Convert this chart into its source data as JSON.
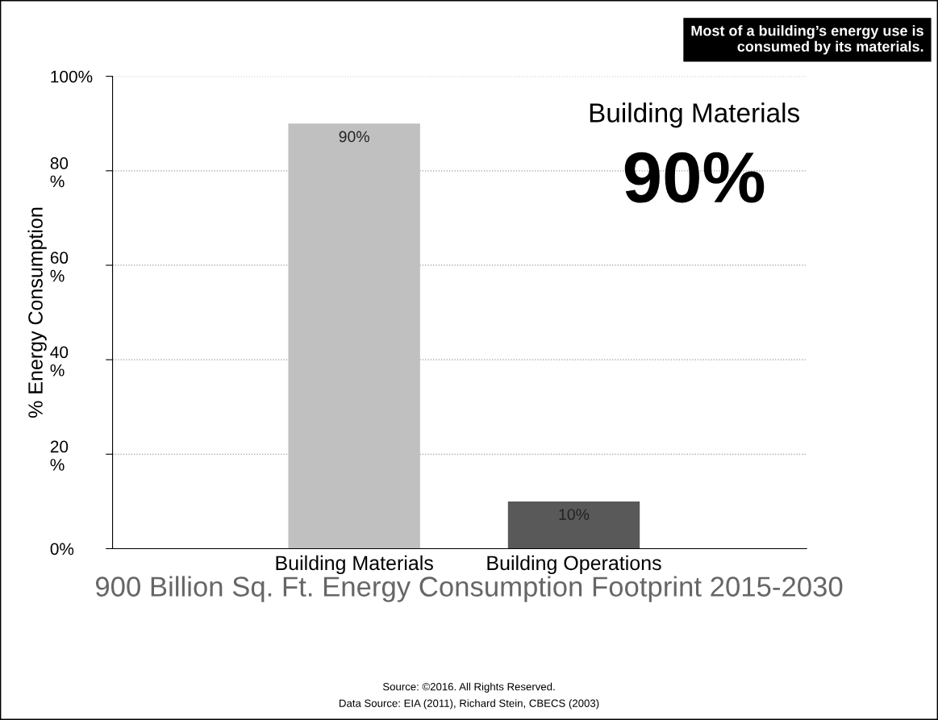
{
  "chart_data": {
    "type": "bar",
    "title": "900 Billion Sq. Ft. Energy Consumption Footprint 2015-2030",
    "ylabel": "% Energy Consumption",
    "categories": [
      "Building Materials",
      "Building Operations"
    ],
    "values": [
      90,
      10
    ],
    "colors": [
      "#c0c0c0",
      "#595959"
    ],
    "value_labels": [
      "90%",
      "10%"
    ],
    "ylim": [
      0,
      100
    ],
    "yticks": [
      {
        "value": 0,
        "label": "0%"
      },
      {
        "value": 20,
        "label": "20\n%"
      },
      {
        "value": 40,
        "label": "40\n%"
      },
      {
        "value": 60,
        "label": "60\n%"
      },
      {
        "value": 80,
        "label": "80\n%"
      },
      {
        "value": 100,
        "label": "100%"
      }
    ],
    "grid": "y",
    "annotations": [
      "Most of a building’s energy use is\nconsumed by its materials.",
      "Building Materials",
      "90%",
      "Source: ©2016. All Rights Reserved.",
      "Data Source: EIA (2011), Richard Stein, CBECS (2003)"
    ]
  }
}
